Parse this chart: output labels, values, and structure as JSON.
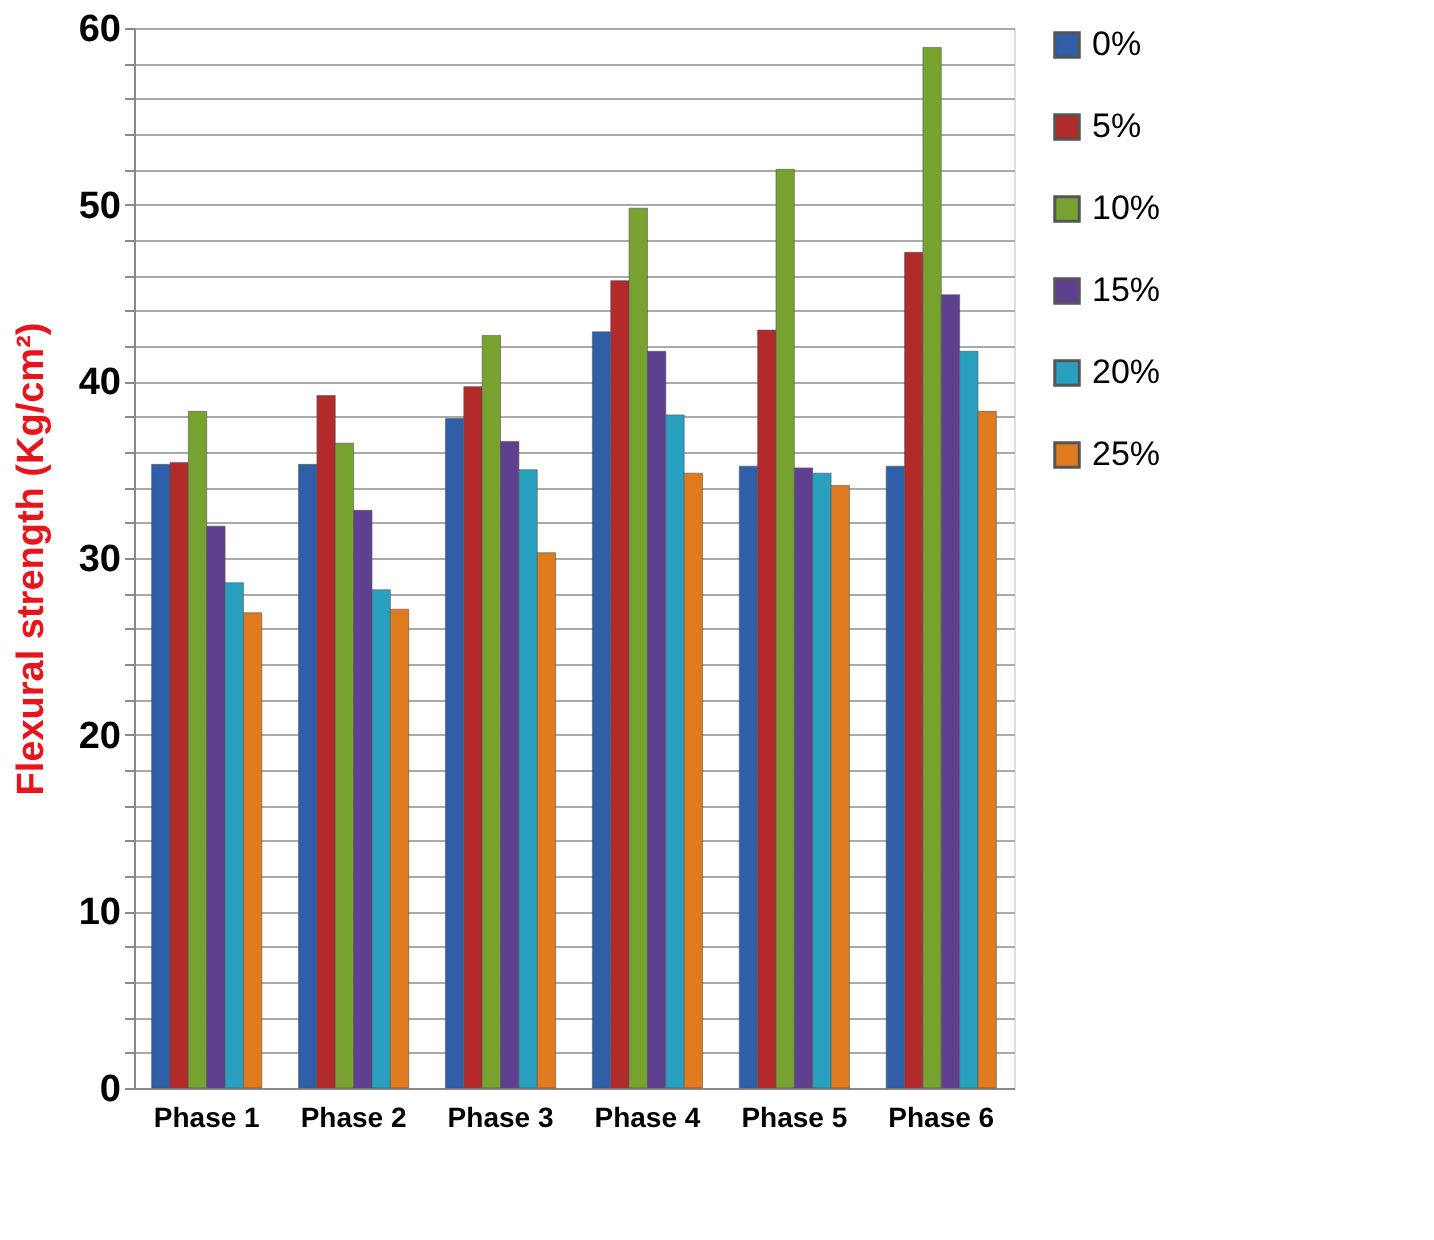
{
  "chart_data": {
    "type": "bar",
    "ylabel": "Flexural strength (Kg/cm²)",
    "categories": [
      "Phase 1",
      "Phase 2",
      "Phase 3",
      "Phase 4",
      "Phase 5",
      "Phase 6"
    ],
    "series": [
      {
        "name": "0%",
        "color": "#2e5fa8",
        "values": [
          35.3,
          35.3,
          37.9,
          42.8,
          35.2,
          35.2
        ]
      },
      {
        "name": "5%",
        "color": "#b22a2a",
        "values": [
          35.4,
          39.2,
          39.7,
          45.7,
          42.9,
          47.3
        ]
      },
      {
        "name": "10%",
        "color": "#78a22f",
        "values": [
          38.3,
          36.5,
          42.6,
          49.8,
          52.0,
          58.9
        ]
      },
      {
        "name": "15%",
        "color": "#5f3f8f",
        "values": [
          31.8,
          32.7,
          36.6,
          41.7,
          35.1,
          44.9
        ]
      },
      {
        "name": "20%",
        "color": "#2aa0c0",
        "values": [
          28.6,
          28.2,
          35.0,
          38.1,
          34.8,
          41.7
        ]
      },
      {
        "name": "25%",
        "color": "#e07a1f",
        "values": [
          26.9,
          27.1,
          30.3,
          34.8,
          34.1,
          38.3
        ]
      }
    ],
    "ylim": [
      0,
      60
    ],
    "yticks": [
      0,
      {
        "value": 2,
        "label": null
      },
      {
        "value": 4,
        "label": null
      },
      {
        "value": 6,
        "label": null
      },
      {
        "value": 8,
        "label": null
      },
      10,
      {
        "value": 12,
        "label": null
      },
      {
        "value": 14,
        "label": null
      },
      {
        "value": 16,
        "label": null
      },
      {
        "value": 18,
        "label": null
      },
      20,
      {
        "value": 22,
        "label": null
      },
      {
        "value": 24,
        "label": null
      },
      {
        "value": 26,
        "label": null
      },
      {
        "value": 28,
        "label": null
      },
      30,
      {
        "value": 32,
        "label": null
      },
      {
        "value": 34,
        "label": null
      },
      {
        "value": 36,
        "label": null
      },
      {
        "value": 38,
        "label": null
      },
      40,
      {
        "value": 42,
        "label": null
      },
      {
        "value": 44,
        "label": null
      },
      {
        "value": 46,
        "label": null
      },
      {
        "value": 48,
        "label": null
      },
      50,
      {
        "value": 52,
        "label": null
      },
      {
        "value": 54,
        "label": null
      },
      {
        "value": 56,
        "label": null
      },
      {
        "value": 58,
        "label": null
      },
      60
    ],
    "grid": "y",
    "legend": "right"
  }
}
